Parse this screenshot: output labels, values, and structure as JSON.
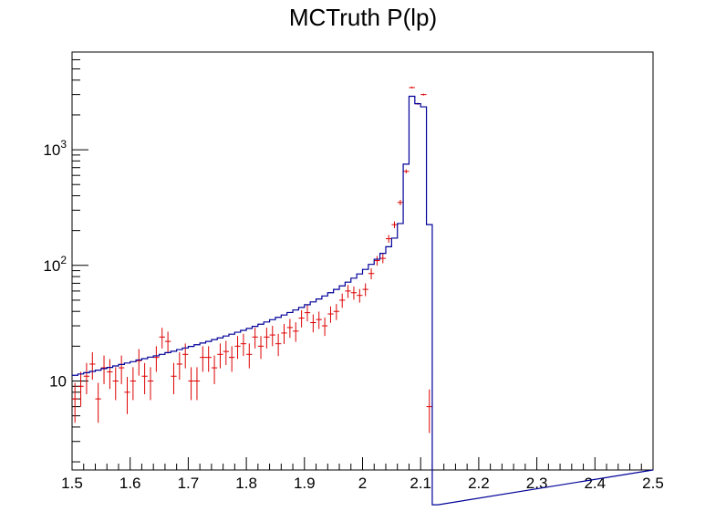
{
  "chart_data": {
    "type": "line",
    "title": "MCTruth P(lp)",
    "xlabel": "",
    "ylabel": "",
    "xlim": [
      1.5,
      2.5
    ],
    "ylim": [
      1.7,
      7000
    ],
    "y_scale": "log",
    "grid": false,
    "x_ticks": [
      "1.5",
      "1.6",
      "1.7",
      "1.8",
      "1.9",
      "2",
      "2.1",
      "2.2",
      "2.3",
      "2.4",
      "2.5"
    ],
    "y_ticks": [
      {
        "value": 10,
        "base": "10",
        "exp": ""
      },
      {
        "value": 100,
        "base": "10",
        "exp": "2"
      },
      {
        "value": 1000,
        "base": "10",
        "exp": "3"
      }
    ],
    "bin_width": 0.01,
    "series": [
      {
        "style": "histogram",
        "color": "#000099",
        "bin_lows": [
          1.5,
          1.51,
          1.52,
          1.53,
          1.54,
          1.55,
          1.56,
          1.57,
          1.58,
          1.59,
          1.6,
          1.61,
          1.62,
          1.63,
          1.64,
          1.65,
          1.66,
          1.67,
          1.68,
          1.69,
          1.7,
          1.71,
          1.72,
          1.73,
          1.74,
          1.75,
          1.76,
          1.77,
          1.78,
          1.79,
          1.8,
          1.81,
          1.82,
          1.83,
          1.84,
          1.85,
          1.86,
          1.87,
          1.88,
          1.89,
          1.9,
          1.91,
          1.92,
          1.93,
          1.94,
          1.95,
          1.96,
          1.97,
          1.98,
          1.99,
          2.0,
          2.01,
          2.02,
          2.03,
          2.04,
          2.05,
          2.06,
          2.07,
          2.08,
          2.09,
          2.1,
          2.11,
          2.12
        ],
        "values": [
          11.2,
          11.5,
          11.8,
          12.1,
          12.4,
          12.8,
          13.1,
          13.5,
          13.9,
          14.3,
          14.7,
          15.2,
          15.6,
          16.1,
          16.5,
          17.0,
          17.6,
          18.1,
          18.7,
          19.3,
          19.9,
          20.6,
          21.3,
          22.0,
          22.8,
          23.6,
          24.5,
          25.4,
          26.4,
          27.4,
          28.5,
          29.7,
          31.0,
          32.4,
          33.9,
          35.5,
          37.2,
          39.1,
          41.1,
          43.3,
          45.7,
          48.3,
          51.2,
          54.4,
          58.0,
          62.0,
          66.5,
          71.6,
          77.5,
          84.3,
          92.3,
          102,
          113,
          127,
          145,
          172,
          230,
          750,
          2900,
          2500,
          2350,
          225,
          0.01
        ]
      },
      {
        "style": "markers",
        "color": "#dd0000",
        "x": [
          1.505,
          1.515,
          1.525,
          1.535,
          1.545,
          1.555,
          1.565,
          1.575,
          1.585,
          1.595,
          1.605,
          1.615,
          1.625,
          1.635,
          1.645,
          1.655,
          1.665,
          1.675,
          1.685,
          1.695,
          1.705,
          1.715,
          1.725,
          1.735,
          1.745,
          1.755,
          1.765,
          1.775,
          1.785,
          1.795,
          1.805,
          1.815,
          1.825,
          1.835,
          1.845,
          1.855,
          1.865,
          1.875,
          1.885,
          1.895,
          1.905,
          1.915,
          1.925,
          1.935,
          1.945,
          1.955,
          1.965,
          1.975,
          1.985,
          1.995,
          2.005,
          2.015,
          2.025,
          2.035,
          2.045,
          2.055,
          2.065,
          2.075,
          2.085,
          2.095,
          2.105,
          2.115
        ],
        "y": [
          7,
          9,
          11,
          14,
          7,
          13,
          12,
          10,
          13,
          8,
          10,
          15,
          11,
          10,
          16,
          24,
          22,
          11,
          14,
          17,
          10,
          10,
          16,
          16,
          13,
          17,
          18,
          16,
          20,
          21,
          17,
          24,
          20,
          24,
          25,
          21,
          26,
          29,
          27,
          35,
          39,
          32,
          34,
          30,
          38,
          40,
          50,
          60,
          58,
          55,
          62,
          85,
          110,
          115,
          170,
          225,
          350,
          650,
          3450,
          2500,
          3000,
          6
        ]
      }
    ]
  }
}
